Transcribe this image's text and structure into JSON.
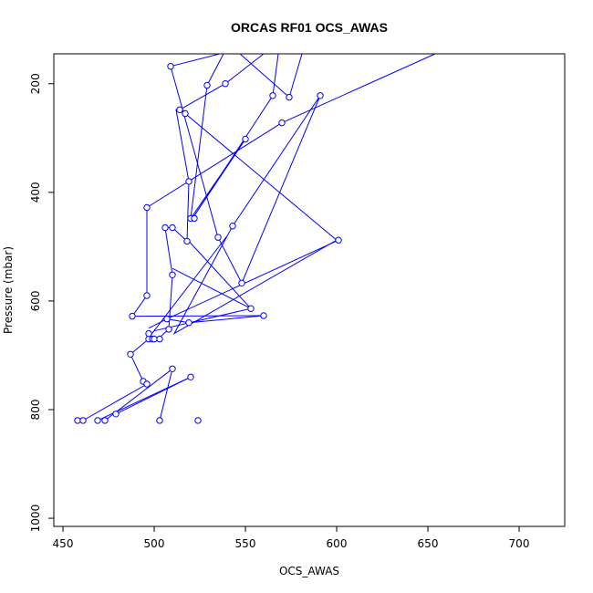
{
  "chart_data": {
    "type": "line",
    "title": "ORCAS RF01 OCS_AWAS",
    "xlabel": "OCS_AWAS",
    "ylabel": "Pressure (mbar)",
    "xlim": [
      445,
      725
    ],
    "ylim": [
      1015,
      145
    ],
    "y_reversed": true,
    "xticks": [
      450,
      500,
      550,
      600,
      650,
      700
    ],
    "yticks": [
      200,
      400,
      600,
      800,
      1000
    ],
    "grid": false,
    "legend": "none",
    "series_color": "#0000ff",
    "series": [
      {
        "x": [
          458,
          461,
          469,
          473,
          479,
          503,
          524
        ],
        "y": [
          820,
          820,
          820,
          820,
          808,
          820,
          820
        ],
        "markers": false
      },
      {
        "x": [
          519,
          520,
          525,
          524,
          514,
          514,
          532,
          535
        ],
        "y": [
          145,
          175,
          200,
          255,
          350,
          450,
          480,
          485
        ],
        "markers": false
      }
    ],
    "path": [
      {
        "x": 458,
        "y": 820
      },
      {
        "x": 461,
        "y": 820
      },
      {
        "x": 496,
        "y": 753
      },
      {
        "x": 494,
        "y": 748
      },
      {
        "x": 487,
        "y": 698
      },
      {
        "x": 497,
        "y": 670
      },
      {
        "x": 500,
        "y": 670
      },
      {
        "x": 497,
        "y": 660
      },
      {
        "x": 498,
        "y": 670
      },
      {
        "x": 502,
        "y": 670
      },
      {
        "x": 508,
        "y": 652
      },
      {
        "x": 510,
        "y": 552
      },
      {
        "x": 506,
        "y": 465
      },
      {
        "x": 510,
        "y": 465
      },
      {
        "x": 518,
        "y": 490
      },
      {
        "x": 519,
        "y": 380
      },
      {
        "x": 512,
        "y": 248
      },
      {
        "x": 517,
        "y": 255
      },
      {
        "x": 600,
        "y": 488
      },
      {
        "x": 511,
        "y": 660
      },
      {
        "x": 543,
        "y": 462
      },
      {
        "x": 591,
        "y": 222
      },
      {
        "x": 548,
        "y": 567
      },
      {
        "x": 535,
        "y": 483
      },
      {
        "x": 509,
        "y": 168
      },
      {
        "x": 536,
        "y": 145
      }
    ],
    "extra_segments": [
      {
        "points": [
          {
            "x": 510,
            "y": 725
          },
          {
            "x": 473,
            "y": 820
          }
        ]
      },
      {
        "points": [
          {
            "x": 510,
            "y": 725
          },
          {
            "x": 503,
            "y": 820
          }
        ]
      },
      {
        "points": [
          {
            "x": 520,
            "y": 740
          },
          {
            "x": 469,
            "y": 820
          }
        ]
      },
      {
        "points": [
          {
            "x": 520,
            "y": 740
          },
          {
            "x": 479,
            "y": 808
          }
        ]
      },
      {
        "points": [
          {
            "x": 488,
            "y": 628
          },
          {
            "x": 560,
            "y": 627
          }
        ]
      },
      {
        "points": [
          {
            "x": 560,
            "y": 627
          },
          {
            "x": 519,
            "y": 640
          }
        ]
      },
      {
        "points": [
          {
            "x": 519,
            "y": 640
          },
          {
            "x": 507,
            "y": 633
          }
        ]
      },
      {
        "points": [
          {
            "x": 507,
            "y": 633
          },
          {
            "x": 497,
            "y": 650
          }
        ]
      },
      {
        "points": [
          {
            "x": 496,
            "y": 590
          },
          {
            "x": 496,
            "y": 428
          }
        ]
      },
      {
        "points": [
          {
            "x": 496,
            "y": 428
          },
          {
            "x": 570,
            "y": 272
          }
        ]
      },
      {
        "points": [
          {
            "x": 570,
            "y": 272
          },
          {
            "x": 654,
            "y": 145
          }
        ]
      },
      {
        "points": [
          {
            "x": 496,
            "y": 590
          },
          {
            "x": 488,
            "y": 628
          }
        ]
      },
      {
        "points": [
          {
            "x": 553,
            "y": 614
          },
          {
            "x": 510,
            "y": 540
          }
        ]
      },
      {
        "points": [
          {
            "x": 553,
            "y": 614
          },
          {
            "x": 500,
            "y": 655
          }
        ]
      },
      {
        "points": [
          {
            "x": 550,
            "y": 302
          },
          {
            "x": 521,
            "y": 448
          }
        ]
      },
      {
        "points": [
          {
            "x": 521,
            "y": 448
          },
          {
            "x": 565,
            "y": 222
          }
        ]
      },
      {
        "points": [
          {
            "x": 565,
            "y": 222
          },
          {
            "x": 568,
            "y": 145
          }
        ]
      },
      {
        "points": [
          {
            "x": 529,
            "y": 203
          },
          {
            "x": 520,
            "y": 448
          }
        ]
      },
      {
        "points": [
          {
            "x": 529,
            "y": 203
          },
          {
            "x": 538,
            "y": 145
          }
        ]
      },
      {
        "points": [
          {
            "x": 539,
            "y": 200
          },
          {
            "x": 560,
            "y": 145
          }
        ]
      },
      {
        "points": [
          {
            "x": 574,
            "y": 225
          },
          {
            "x": 547,
            "y": 145
          }
        ]
      },
      {
        "points": [
          {
            "x": 539,
            "y": 200
          },
          {
            "x": 514,
            "y": 248
          }
        ]
      },
      {
        "points": [
          {
            "x": 520,
            "y": 448
          },
          {
            "x": 550,
            "y": 302
          }
        ]
      },
      {
        "points": [
          {
            "x": 574,
            "y": 225
          },
          {
            "x": 581,
            "y": 145
          }
        ]
      },
      {
        "points": [
          {
            "x": 496,
            "y": 672
          },
          {
            "x": 540,
            "y": 480
          }
        ]
      },
      {
        "points": [
          {
            "x": 519,
            "y": 490
          },
          {
            "x": 553,
            "y": 614
          }
        ]
      },
      {
        "points": [
          {
            "x": 507,
            "y": 633
          },
          {
            "x": 601,
            "y": 488
          }
        ]
      }
    ],
    "points": [
      {
        "x": 458,
        "y": 820
      },
      {
        "x": 461,
        "y": 820
      },
      {
        "x": 469,
        "y": 820
      },
      {
        "x": 473,
        "y": 820
      },
      {
        "x": 479,
        "y": 808
      },
      {
        "x": 503,
        "y": 820
      },
      {
        "x": 524,
        "y": 820
      },
      {
        "x": 494,
        "y": 748
      },
      {
        "x": 496,
        "y": 753
      },
      {
        "x": 510,
        "y": 725
      },
      {
        "x": 520,
        "y": 740
      },
      {
        "x": 487,
        "y": 698
      },
      {
        "x": 497,
        "y": 670
      },
      {
        "x": 499,
        "y": 670
      },
      {
        "x": 500,
        "y": 670
      },
      {
        "x": 503,
        "y": 670
      },
      {
        "x": 497,
        "y": 660
      },
      {
        "x": 508,
        "y": 652
      },
      {
        "x": 488,
        "y": 628
      },
      {
        "x": 507,
        "y": 633
      },
      {
        "x": 519,
        "y": 640
      },
      {
        "x": 553,
        "y": 614
      },
      {
        "x": 560,
        "y": 627
      },
      {
        "x": 496,
        "y": 590
      },
      {
        "x": 510,
        "y": 552
      },
      {
        "x": 548,
        "y": 567
      },
      {
        "x": 518,
        "y": 490
      },
      {
        "x": 535,
        "y": 483
      },
      {
        "x": 601,
        "y": 488
      },
      {
        "x": 506,
        "y": 465
      },
      {
        "x": 510,
        "y": 465
      },
      {
        "x": 543,
        "y": 462
      },
      {
        "x": 520,
        "y": 448
      },
      {
        "x": 522,
        "y": 448
      },
      {
        "x": 496,
        "y": 428
      },
      {
        "x": 519,
        "y": 380
      },
      {
        "x": 550,
        "y": 302
      },
      {
        "x": 570,
        "y": 272
      },
      {
        "x": 514,
        "y": 248
      },
      {
        "x": 517,
        "y": 255
      },
      {
        "x": 565,
        "y": 222
      },
      {
        "x": 574,
        "y": 225
      },
      {
        "x": 591,
        "y": 222
      },
      {
        "x": 529,
        "y": 203
      },
      {
        "x": 539,
        "y": 200
      },
      {
        "x": 509,
        "y": 168
      }
    ]
  }
}
